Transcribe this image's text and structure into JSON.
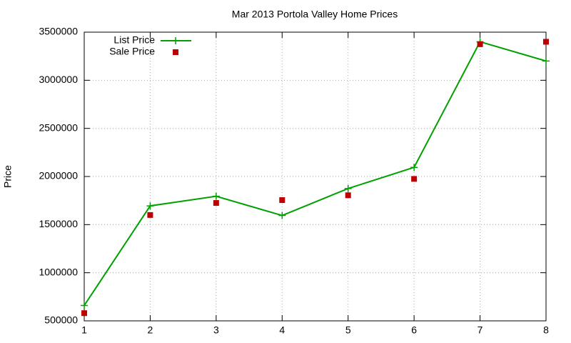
{
  "chart_data": {
    "type": "linespoints",
    "title": "Mar 2013 Portola Valley Home Prices",
    "y_label": "Price",
    "x": [
      1,
      2,
      3,
      4,
      5,
      6,
      7,
      8
    ],
    "series": [
      {
        "name": "List Price",
        "color": "#00a000",
        "style": "linespoints",
        "values": [
          660000,
          1695000,
          1795000,
          1595000,
          1875000,
          2095000,
          3400000,
          3200000
        ]
      },
      {
        "name": "Sale Price",
        "color": "#c00000",
        "style": "points",
        "values": [
          580000,
          1600000,
          1725000,
          1755000,
          1805000,
          1975000,
          3375000,
          3400000
        ]
      }
    ],
    "xlim": [
      1,
      8
    ],
    "xticks": [
      1,
      2,
      3,
      4,
      5,
      6,
      7,
      8
    ],
    "ylim": [
      500000,
      3500000
    ],
    "yticks": [
      500000,
      1000000,
      1500000,
      2000000,
      2500000,
      3000000,
      3500000
    ],
    "grid": true,
    "legend": "top-left"
  }
}
